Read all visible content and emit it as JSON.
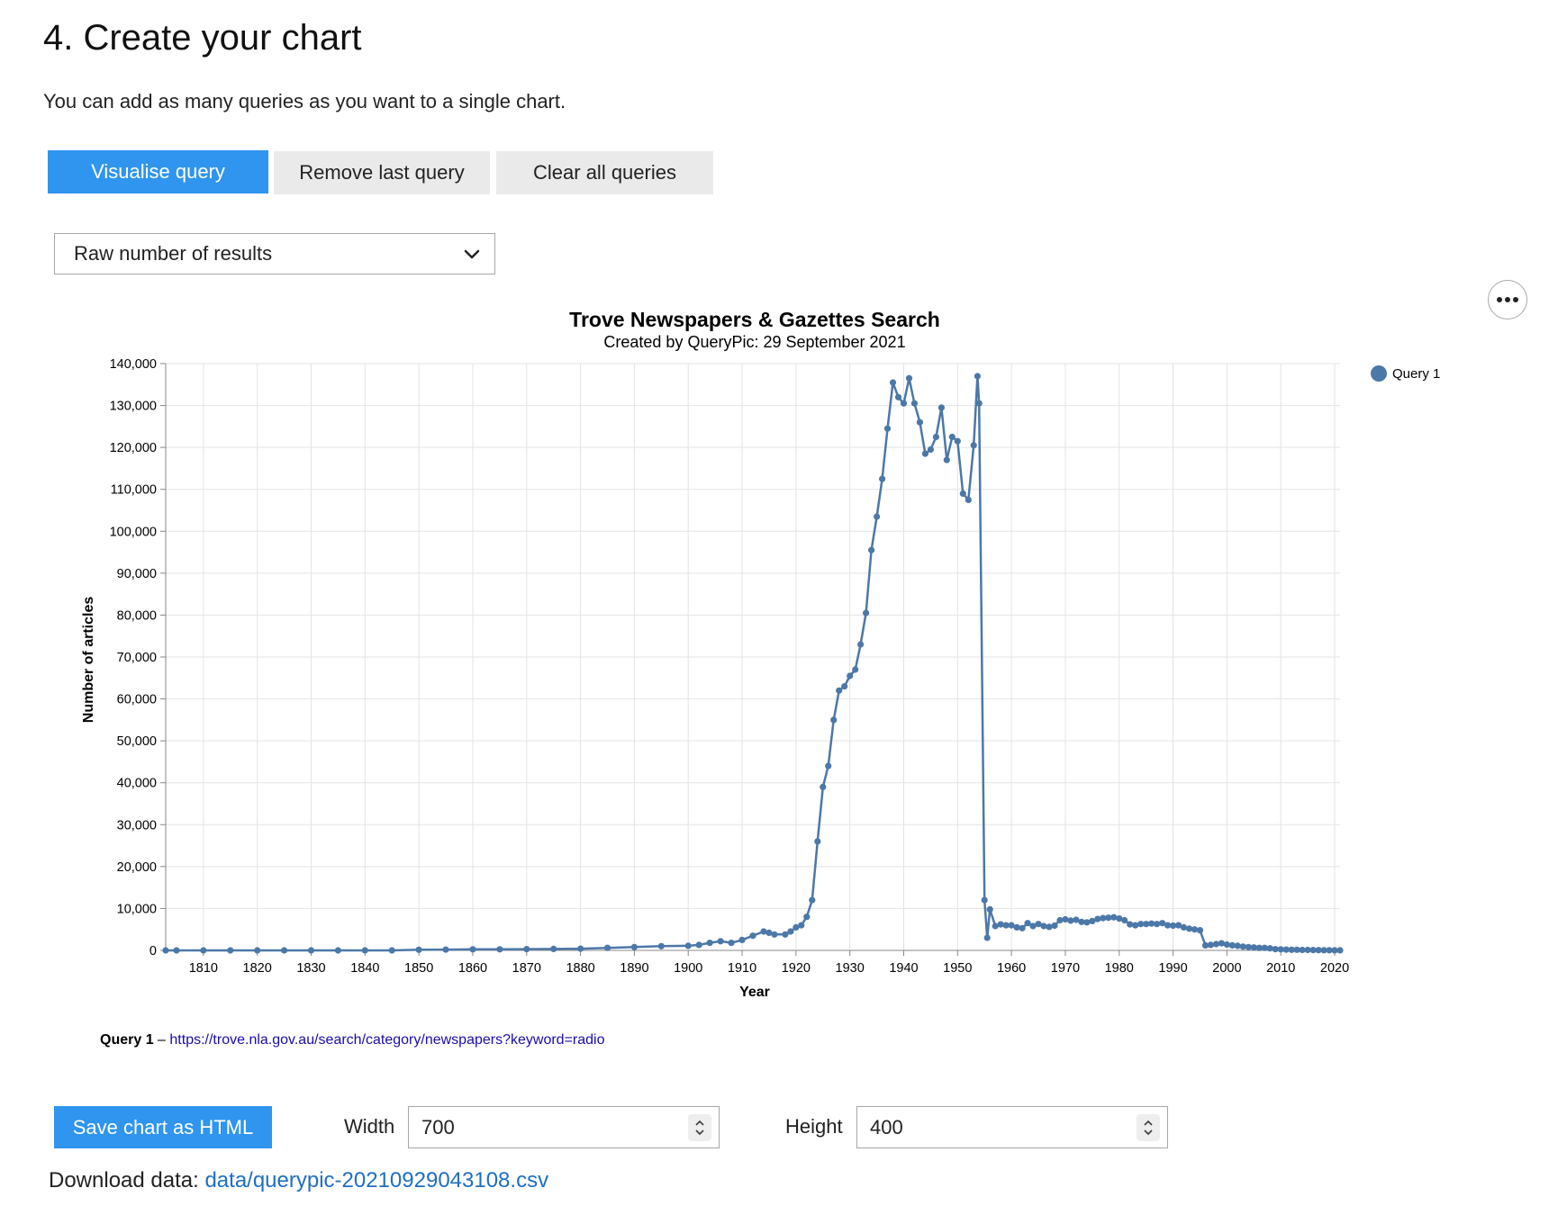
{
  "page": {
    "heading": "4. Create your chart",
    "intro": "You can add as many queries as you want to a single chart."
  },
  "buttons": {
    "visualise": "Visualise query",
    "remove_last": "Remove last query",
    "clear_all": "Clear all queries"
  },
  "select": {
    "value": "Raw number of results"
  },
  "chart_data": {
    "type": "line",
    "title": "Trove Newspapers & Gazettes Search",
    "subtitle": "Created by QueryPic: 29 September 2021",
    "xlabel": "Year",
    "ylabel": "Number of articles",
    "xlim": [
      1803,
      2021
    ],
    "ylim": [
      0,
      140000
    ],
    "x_ticks": [
      1810,
      1820,
      1830,
      1840,
      1850,
      1860,
      1870,
      1880,
      1890,
      1900,
      1910,
      1920,
      1930,
      1940,
      1950,
      1960,
      1970,
      1980,
      1990,
      2000,
      2010,
      2020
    ],
    "y_ticks": [
      "0",
      "10,000",
      "20,000",
      "30,000",
      "40,000",
      "50,000",
      "60,000",
      "70,000",
      "80,000",
      "90,000",
      "100,000",
      "110,000",
      "120,000",
      "130,000",
      "140,000"
    ],
    "grid": true,
    "legend": "top-right",
    "series": [
      {
        "name": "Query 1",
        "color": "#4c78a8",
        "points": [
          [
            1803,
            0
          ],
          [
            1805,
            0
          ],
          [
            1810,
            0
          ],
          [
            1815,
            0
          ],
          [
            1820,
            0
          ],
          [
            1825,
            0
          ],
          [
            1830,
            0
          ],
          [
            1835,
            0
          ],
          [
            1840,
            0
          ],
          [
            1845,
            0
          ],
          [
            1850,
            150
          ],
          [
            1855,
            200
          ],
          [
            1860,
            250
          ],
          [
            1865,
            250
          ],
          [
            1870,
            300
          ],
          [
            1875,
            350
          ],
          [
            1880,
            400
          ],
          [
            1885,
            600
          ],
          [
            1890,
            800
          ],
          [
            1895,
            1000
          ],
          [
            1900,
            1100
          ],
          [
            1902,
            1300
          ],
          [
            1904,
            1800
          ],
          [
            1906,
            2200
          ],
          [
            1908,
            1800
          ],
          [
            1910,
            2500
          ],
          [
            1912,
            3500
          ],
          [
            1914,
            4500
          ],
          [
            1915,
            4200
          ],
          [
            1916,
            3800
          ],
          [
            1918,
            3800
          ],
          [
            1919,
            4500
          ],
          [
            1920,
            5500
          ],
          [
            1921,
            6000
          ],
          [
            1922,
            8000
          ],
          [
            1923,
            12000
          ],
          [
            1924,
            26000
          ],
          [
            1925,
            39000
          ],
          [
            1926,
            44000
          ],
          [
            1927,
            55000
          ],
          [
            1928,
            62000
          ],
          [
            1929,
            63000
          ],
          [
            1930,
            65500
          ],
          [
            1931,
            67000
          ],
          [
            1932,
            73000
          ],
          [
            1933,
            80500
          ],
          [
            1934,
            95500
          ],
          [
            1935,
            103500
          ],
          [
            1936,
            112500
          ],
          [
            1937,
            124500
          ],
          [
            1938,
            135500
          ],
          [
            1939,
            132000
          ],
          [
            1940,
            130500
          ],
          [
            1941,
            136500
          ],
          [
            1942,
            130500
          ],
          [
            1943,
            126000
          ],
          [
            1944,
            118500
          ],
          [
            1945,
            119500
          ],
          [
            1946,
            122500
          ],
          [
            1947,
            129500
          ],
          [
            1948,
            117000
          ],
          [
            1949,
            122500
          ],
          [
            1950,
            121500
          ],
          [
            1951,
            109000
          ],
          [
            1952,
            107500
          ],
          [
            1953,
            120500
          ],
          [
            1953.7,
            137000
          ],
          [
            1954,
            130500
          ],
          [
            1955,
            12000
          ],
          [
            1955.5,
            3000
          ],
          [
            1956,
            9800
          ],
          [
            1957,
            5800
          ],
          [
            1958,
            6200
          ],
          [
            1959,
            6000
          ],
          [
            1960,
            6000
          ],
          [
            1961,
            5500
          ],
          [
            1962,
            5300
          ],
          [
            1963,
            6500
          ],
          [
            1964,
            5800
          ],
          [
            1965,
            6300
          ],
          [
            1966,
            5800
          ],
          [
            1967,
            5600
          ],
          [
            1968,
            5900
          ],
          [
            1969,
            7200
          ],
          [
            1970,
            7400
          ],
          [
            1971,
            7100
          ],
          [
            1972,
            7300
          ],
          [
            1973,
            6800
          ],
          [
            1974,
            6700
          ],
          [
            1975,
            7000
          ],
          [
            1976,
            7500
          ],
          [
            1977,
            7700
          ],
          [
            1978,
            7800
          ],
          [
            1979,
            7900
          ],
          [
            1980,
            7600
          ],
          [
            1981,
            7200
          ],
          [
            1982,
            6200
          ],
          [
            1983,
            6000
          ],
          [
            1984,
            6300
          ],
          [
            1985,
            6300
          ],
          [
            1986,
            6400
          ],
          [
            1987,
            6300
          ],
          [
            1988,
            6500
          ],
          [
            1989,
            6000
          ],
          [
            1990,
            5900
          ],
          [
            1991,
            6000
          ],
          [
            1992,
            5500
          ],
          [
            1993,
            5200
          ],
          [
            1994,
            5000
          ],
          [
            1995,
            4800
          ],
          [
            1996,
            1200
          ],
          [
            1997,
            1300
          ],
          [
            1998,
            1500
          ],
          [
            1999,
            1700
          ],
          [
            2000,
            1400
          ],
          [
            2001,
            1200
          ],
          [
            2002,
            1100
          ],
          [
            2003,
            900
          ],
          [
            2004,
            800
          ],
          [
            2005,
            700
          ],
          [
            2006,
            600
          ],
          [
            2007,
            600
          ],
          [
            2008,
            500
          ],
          [
            2009,
            300
          ],
          [
            2010,
            250
          ],
          [
            2011,
            200
          ],
          [
            2012,
            150
          ],
          [
            2013,
            150
          ],
          [
            2014,
            100
          ],
          [
            2015,
            100
          ],
          [
            2016,
            80
          ],
          [
            2017,
            60
          ],
          [
            2018,
            50
          ],
          [
            2019,
            40
          ],
          [
            2020,
            30
          ],
          [
            2021,
            20
          ]
        ]
      }
    ]
  },
  "query_info": {
    "label": "Query 1",
    "separator": "–",
    "url": "https://trove.nla.gov.au/search/category/newspapers?keyword=radio"
  },
  "export": {
    "save_label": "Save chart as HTML",
    "width_label": "Width",
    "width_value": "700",
    "height_label": "Height",
    "height_value": "400"
  },
  "download": {
    "label": "Download data:",
    "link": "data/querypic-20210929043108.csv"
  }
}
